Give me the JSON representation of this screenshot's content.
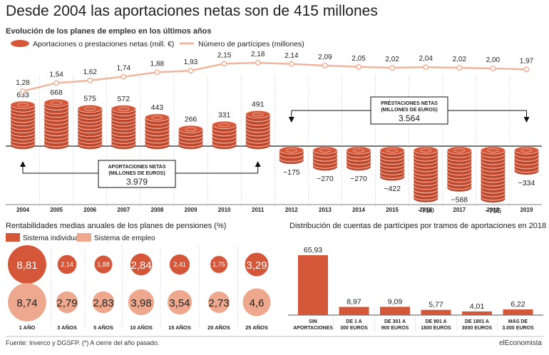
{
  "title": "Desde 2004 las aportaciones netas son de 415 millones",
  "subtitle": "Evolución de los planes de empleo en los últimos años",
  "legend_top": {
    "aportaciones": "Aportaciones o prestaciones netas (mill. €)",
    "participes": "Número de partícipes (millones)"
  },
  "boxes": {
    "aportaciones": {
      "label1": "APORTACIONES NETAS",
      "label2": "(MILLONES DE EUROS)",
      "value": "3.979"
    },
    "prestaciones": {
      "label1": "PRÉSTACIONES NETAS",
      "label2": "(MILLONES DE EUROS)",
      "value": "3.564"
    }
  },
  "section2_title": "Rentabilidades medias anuales de los planes de pensiones (%)",
  "section2_legend": {
    "individual": "Sistema individual",
    "empleo": "Sistema de empleo"
  },
  "section3_title": "Distribución de cuentas de partícipes por tramos de aportaciones en 2018",
  "colors": {
    "dark": "#d4573a",
    "light": "#eea88e",
    "line": "#f0b59c",
    "axis": "#222222"
  },
  "footer": "Fuente: Inverco y DGSFP. (*) A cierre del año pasado.",
  "brand": "elEconomista",
  "chart_data": [
    {
      "type": "bar",
      "title": "Desde 2004 las aportaciones netas son de 415 millones",
      "categories": [
        "2004",
        "2005",
        "2006",
        "2007",
        "2008",
        "2009",
        "2010",
        "2011",
        "2012",
        "2013",
        "2014",
        "2015",
        "2016",
        "2017",
        "2018",
        "2019"
      ],
      "series": [
        {
          "name": "Aportaciones o prestaciones netas (mill. €)",
          "values": [
            633,
            668,
            575,
            572,
            443,
            266,
            331,
            491,
            -175,
            -270,
            -270,
            -422,
            -750,
            -588,
            -755,
            -334
          ],
          "labels": [
            "633",
            "668",
            "575",
            "572",
            "443",
            "266",
            "331",
            "491",
            "−175",
            "−270",
            "−270",
            "−422",
            "−750",
            "−588",
            "−755",
            "−334"
          ]
        },
        {
          "name": "Número de partícipes (millones)",
          "type": "line",
          "values": [
            1.28,
            1.54,
            1.62,
            1.74,
            1.88,
            1.93,
            2.15,
            2.18,
            2.14,
            2.09,
            2.05,
            2.02,
            2.04,
            2.02,
            2.0,
            1.97
          ],
          "labels": [
            "1,28",
            "1,54",
            "1,62",
            "1,74",
            "1,88",
            "1,93",
            "2,15",
            "2,18",
            "2,14",
            "2,09",
            "2,05",
            "2,02",
            "2,04",
            "2,02",
            "2,00",
            "1,97"
          ]
        }
      ]
    },
    {
      "type": "scatter",
      "title": "Rentabilidades medias anuales de los planes de pensiones (%)",
      "categories": [
        "1 AÑO",
        "3 AÑOS",
        "5 AÑOS",
        "10 AÑOS",
        "15 AÑOS",
        "20 AÑOS",
        "25 AÑOS"
      ],
      "series": [
        {
          "name": "Sistema individual",
          "values": [
            8.81,
            2.14,
            1.88,
            2.84,
            2.41,
            1.75,
            3.29
          ],
          "labels": [
            "8,81",
            "2,14",
            "1,88",
            "2,84",
            "2,41",
            "1,75",
            "3,29"
          ]
        },
        {
          "name": "Sistema de empleo",
          "values": [
            8.74,
            2.79,
            2.83,
            3.98,
            3.54,
            2.73,
            4.6
          ],
          "labels": [
            "8,74",
            "2,79",
            "2,83",
            "3,98",
            "3,54",
            "2,73",
            "4,6"
          ]
        }
      ]
    },
    {
      "type": "bar",
      "title": "Distribución de cuentas de partícipes por tramos de aportaciones en 2018",
      "categories": [
        [
          "SIN",
          "APORTACIONES"
        ],
        [
          "DE 1 A",
          "300 EUROS"
        ],
        [
          "DE 301 A",
          "900 EUROS"
        ],
        [
          "DE 901 A",
          "1800 EUROS"
        ],
        [
          "DE 1801 A",
          "3000 EUROS"
        ],
        [
          "MÁS DE",
          "3.000 EUROS"
        ]
      ],
      "values": [
        65.93,
        8.97,
        9.09,
        5.77,
        4.01,
        6.22
      ],
      "labels": [
        "65,93",
        "8,97",
        "9,09",
        "5,77",
        "4,01",
        "6,22"
      ]
    }
  ]
}
